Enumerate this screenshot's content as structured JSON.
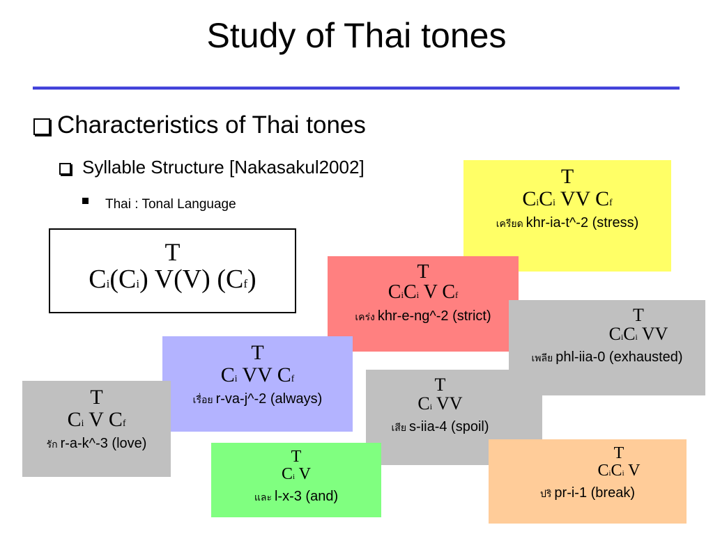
{
  "title": "Study of Thai tones",
  "bullets": [
    {
      "text": "Characteristics of Thai tones",
      "children": [
        {
          "text": "Syllable Structure [Nakasakul2002]",
          "children": [
            {
              "text": "Thai : Tonal Language"
            }
          ]
        }
      ]
    }
  ],
  "structure": {
    "tone": "T",
    "formula": [
      [
        "C",
        "i"
      ],
      [
        "(C",
        "i"
      ],
      [
        ") V(V) (C",
        "f"
      ],
      [
        ")"
      ]
    ]
  },
  "boxes": [
    {
      "tone": "T",
      "formula": [
        [
          "C",
          "i"
        ],
        [
          "C",
          "i"
        ],
        [
          " VV C",
          "f"
        ]
      ],
      "thai": "เครียด",
      "roman": "khr-ia-t^-2 (stress)"
    },
    {
      "tone": "T",
      "formula": [
        [
          "C",
          "i"
        ],
        [
          "C",
          "i"
        ],
        [
          " V C",
          "f"
        ]
      ],
      "thai": "เคร่ง",
      "roman": "khr-e-ng^-2 (strict)"
    },
    {
      "tone": "T",
      "formula": [
        [
          "C",
          "i"
        ],
        [
          "C",
          "i"
        ],
        [
          " VV"
        ]
      ],
      "thai": "เพลีย",
      "roman": "phl-iia-0 (exhausted)"
    },
    {
      "tone": "T",
      "formula": [
        [
          "C",
          "i"
        ],
        [
          " VV C",
          "f"
        ]
      ],
      "thai": "เรื่อย",
      "roman": "r-va-j^-2 (always)"
    },
    {
      "tone": "T",
      "formula": [
        [
          "C",
          "i"
        ],
        [
          " V C",
          "f"
        ]
      ],
      "thai": "รัก",
      "roman": "r-a-k^-3 (love)"
    },
    {
      "tone": "T",
      "formula": [
        [
          "C",
          "i"
        ],
        [
          " VV"
        ]
      ],
      "thai": "เสีย",
      "roman": "s-iia-4 (spoil)"
    },
    {
      "tone": "T",
      "formula": [
        [
          "C",
          "i"
        ],
        [
          " V"
        ]
      ],
      "thai": "และ",
      "roman": "l-x-3 (and)"
    },
    {
      "tone": "T",
      "formula": [
        [
          "C",
          "i"
        ],
        [
          "C",
          "i"
        ],
        [
          " V"
        ]
      ],
      "thai": "ปริ",
      "roman": "pr-i-1 (break)"
    }
  ]
}
